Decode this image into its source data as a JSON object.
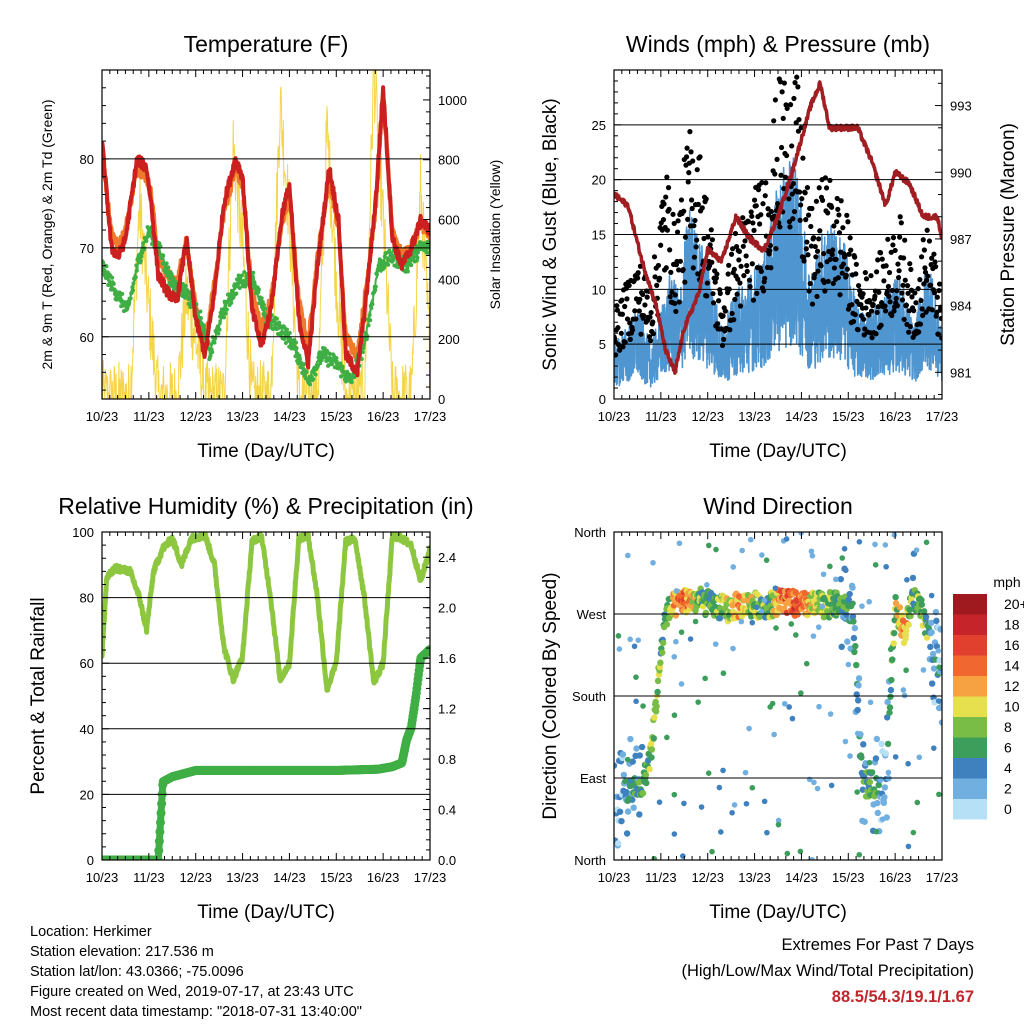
{
  "colors": {
    "red": "#cc1f1f",
    "orange": "#f07a2c",
    "green_td": "#3fae44",
    "yellow": "#f5d548",
    "gust": "#000000",
    "wind": "#4f95d0",
    "pressure": "#a01e22",
    "rh": "#8dc63f",
    "precip": "#3fae44",
    "accent_text": "#c0272d"
  },
  "x_ticks": [
    "10/23",
    "11/23",
    "12/23",
    "13/23",
    "14/23",
    "15/23",
    "16/23",
    "17/23"
  ],
  "xlabel": "Time (Day/UTC)",
  "temperature": {
    "title": "Temperature (F)",
    "ylabel_left": "2m & 9m T (Red, Orange) & 2m Td (Green)",
    "ylabel_right": "Solar Insolation (Yellow)",
    "y_ticks_left": [
      "60",
      "70",
      "80"
    ],
    "y_ticks_right": [
      "0",
      "200",
      "400",
      "600",
      "800",
      "1000"
    ]
  },
  "winds": {
    "title": "Winds (mph) & Pressure (mb)",
    "ylabel_left": "Sonic Wind & Gust (Blue, Black)",
    "ylabel_right": "Station Pressure (Maroon)",
    "y_ticks_left": [
      "0",
      "5",
      "10",
      "15",
      "20",
      "25"
    ],
    "y_ticks_right": [
      "981",
      "984",
      "987",
      "990",
      "993"
    ]
  },
  "humidity": {
    "title": "Relative Humidity (%) & Precipitation (in)",
    "ylabel_left": "Percent & Total Rainfall",
    "y_ticks_left": [
      "0",
      "20",
      "40",
      "60",
      "80",
      "100"
    ],
    "y_ticks_right": [
      "0.0",
      "0.4",
      "0.8",
      "1.2",
      "1.6",
      "2.0",
      "2.4"
    ]
  },
  "direction": {
    "title": "Wind Direction",
    "ylabel_left": "Direction (Colored By Speed)",
    "y_ticks_left": [
      "North",
      "East",
      "South",
      "West",
      "North"
    ],
    "legend_title": "mph",
    "legend_labels": [
      "20+",
      "18",
      "16",
      "14",
      "12",
      "10",
      "8",
      "6",
      "4",
      "2",
      "0"
    ],
    "legend_colors": [
      "#9e1a1e",
      "#c4242a",
      "#e0402d",
      "#f0672f",
      "#f6a142",
      "#e6e04e",
      "#79bd47",
      "#3d9e5c",
      "#3f80bf",
      "#71afe0",
      "#b6e0f5"
    ]
  },
  "info": {
    "location": "Location: Herkimer",
    "elevation": "Station elevation: 217.536 m",
    "latlon": "Station lat/lon: 43.0366; -75.0096",
    "created": "Figure created on Wed, 2019-07-17, at 23:43 UTC",
    "recent": "Most recent data timestamp: \"2018-07-31 13:40:00\""
  },
  "extremes": {
    "title": "Extremes For Past 7 Days",
    "subtitle": "(High/Low/Max Wind/Total Precipitation)",
    "values": "88.5/54.3/19.1/1.67"
  },
  "chart_data": [
    {
      "type": "line",
      "title": "Temperature (F)",
      "xlabel": "Time (Day/UTC)",
      "ylabel": "2m & 9m T (Red, Orange) & 2m Td (Green)",
      "ylabel_right": "Solar Insolation (Yellow)",
      "xlim": [
        0,
        7
      ],
      "ylim": [
        53,
        90
      ],
      "ylim_right": [
        0,
        1100
      ],
      "x_tick_labels": [
        "10/23",
        "11/23",
        "12/23",
        "13/23",
        "14/23",
        "15/23",
        "16/23",
        "17/23"
      ],
      "series": [
        {
          "name": "2m T",
          "axis": "left",
          "x": [
            0,
            0.2,
            0.35,
            0.5,
            0.75,
            0.95,
            1.05,
            1.2,
            1.4,
            1.6,
            1.8,
            2.0,
            2.2,
            2.4,
            2.6,
            2.85,
            3.0,
            3.2,
            3.4,
            3.6,
            3.85,
            4.0,
            4.2,
            4.4,
            4.6,
            4.85,
            5.05,
            5.2,
            5.45,
            5.65,
            5.85,
            6.0,
            6.2,
            6.4,
            6.6,
            6.8,
            7.0
          ],
          "y": [
            82,
            70,
            69,
            71,
            80,
            79,
            75,
            67,
            65,
            64,
            71,
            62,
            58,
            65,
            75,
            80,
            78,
            63,
            59,
            63,
            74,
            77,
            62,
            57,
            68,
            79,
            73,
            58,
            56,
            65,
            76,
            88,
            71,
            68,
            70,
            73,
            72
          ]
        },
        {
          "name": "9m T",
          "axis": "left",
          "x": [
            0,
            0.2,
            0.35,
            0.5,
            0.75,
            0.95,
            1.05,
            1.2,
            1.4,
            1.6,
            1.8,
            2.0,
            2.2,
            2.4,
            2.6,
            2.85,
            3.0,
            3.2,
            3.4,
            3.6,
            3.85,
            4.0,
            4.2,
            4.4,
            4.6,
            4.85,
            5.05,
            5.2,
            5.45,
            5.65,
            5.85,
            6.0,
            6.2,
            6.4,
            6.6,
            6.8,
            7.0
          ],
          "y": [
            81,
            72,
            70,
            72,
            79,
            78,
            76,
            69,
            67,
            66,
            71,
            63,
            59,
            66,
            74,
            79,
            77,
            65,
            61,
            64,
            73,
            76,
            64,
            59,
            69,
            78,
            72,
            60,
            58,
            66,
            75,
            87,
            72,
            69,
            70,
            73,
            71
          ]
        },
        {
          "name": "2m Td",
          "axis": "left",
          "x": [
            0,
            0.3,
            0.55,
            0.8,
            1.0,
            1.2,
            1.5,
            1.8,
            2.1,
            2.3,
            2.6,
            2.9,
            3.2,
            3.5,
            3.8,
            4.1,
            4.4,
            4.7,
            5.0,
            5.3,
            5.6,
            5.9,
            6.2,
            6.5,
            6.8,
            7.0
          ],
          "y": [
            68,
            65,
            63,
            69,
            72,
            70,
            66,
            65,
            62,
            58,
            63,
            66,
            67,
            62,
            61,
            59,
            55,
            58,
            57,
            55,
            59,
            68,
            69,
            68,
            70,
            70
          ]
        },
        {
          "name": "Solar Insolation",
          "axis": "right",
          "x": [
            0,
            0.6,
            0.8,
            1.0,
            1.2,
            1.6,
            1.8,
            2.0,
            2.2,
            2.6,
            2.8,
            3.0,
            3.2,
            3.6,
            3.8,
            4.0,
            4.2,
            4.6,
            4.8,
            5.0,
            5.2,
            5.6,
            5.8,
            6.0,
            6.2,
            6.6,
            6.8,
            7.0
          ],
          "y": [
            0,
            0,
            650,
            300,
            0,
            0,
            350,
            200,
            0,
            0,
            850,
            500,
            0,
            0,
            1000,
            600,
            0,
            0,
            900,
            400,
            0,
            0,
            1100,
            600,
            0,
            0,
            700,
            150
          ]
        }
      ]
    },
    {
      "type": "scatter",
      "title": "Winds (mph) & Pressure (mb)",
      "xlabel": "Time (Day/UTC)",
      "ylabel": "Sonic Wind & Gust (Blue, Black)",
      "ylabel_right": "Station Pressure (Maroon)",
      "xlim": [
        0,
        7
      ],
      "ylim": [
        0,
        30
      ],
      "ylim_right": [
        979.8,
        994.6
      ],
      "x_tick_labels": [
        "10/23",
        "11/23",
        "12/23",
        "13/23",
        "14/23",
        "15/23",
        "16/23",
        "17/23"
      ],
      "series": [
        {
          "name": "Wind",
          "axis": "left",
          "x": [
            0,
            0.5,
            0.8,
            1.2,
            1.4,
            1.6,
            1.8,
            2.0,
            2.3,
            2.6,
            2.9,
            3.2,
            3.5,
            3.8,
            4.0,
            4.2,
            4.5,
            4.9,
            5.2,
            5.5,
            5.8,
            6.1,
            6.4,
            6.7,
            7.0
          ],
          "y": [
            3,
            5,
            3,
            7,
            6,
            11,
            9,
            8,
            4,
            6,
            7,
            8,
            12,
            14,
            11,
            7,
            10,
            9,
            5,
            5,
            6,
            7,
            4,
            8,
            4
          ]
        },
        {
          "name": "Gust",
          "axis": "left",
          "x": [
            0,
            0.5,
            0.8,
            1.1,
            1.3,
            1.6,
            1.8,
            2.0,
            2.3,
            2.6,
            2.9,
            3.2,
            3.5,
            3.8,
            4.0,
            4.2,
            4.5,
            4.9,
            5.2,
            5.5,
            5.8,
            6.1,
            6.4,
            6.7,
            7.0
          ],
          "y": [
            6,
            10,
            8,
            17,
            12,
            19,
            18,
            14,
            7,
            12,
            14,
            16,
            22,
            26,
            19,
            13,
            16,
            14,
            9,
            9,
            11,
            13,
            8,
            13,
            7
          ]
        },
        {
          "name": "Pressure",
          "axis": "right",
          "x": [
            0,
            0.3,
            0.6,
            0.9,
            1.1,
            1.3,
            1.5,
            1.8,
            2.0,
            2.3,
            2.6,
            2.9,
            3.2,
            3.5,
            3.8,
            4.0,
            4.2,
            4.4,
            4.6,
            4.9,
            5.2,
            5.5,
            5.8,
            6.0,
            6.3,
            6.6,
            6.9,
            7.0
          ],
          "y": [
            989,
            988.5,
            986,
            984,
            982,
            981,
            983,
            984.5,
            986.5,
            986,
            988,
            987,
            986.5,
            988,
            990,
            991.5,
            993,
            994,
            992,
            992,
            992,
            990.5,
            988.5,
            990,
            989.5,
            988,
            988,
            987
          ]
        }
      ]
    },
    {
      "type": "line",
      "title": "Relative Humidity (%) & Precipitation (in)",
      "xlabel": "Time (Day/UTC)",
      "ylabel": "Percent & Total Rainfall",
      "xlim": [
        0,
        7
      ],
      "ylim": [
        0,
        100
      ],
      "ylim_right": [
        0,
        2.6
      ],
      "x_tick_labels": [
        "10/23",
        "11/23",
        "12/23",
        "13/23",
        "14/23",
        "15/23",
        "16/23",
        "17/23"
      ],
      "series": [
        {
          "name": "Relative Humidity",
          "axis": "left",
          "x": [
            0,
            0.1,
            0.3,
            0.6,
            0.8,
            0.95,
            1.1,
            1.3,
            1.5,
            1.7,
            1.9,
            2.2,
            2.4,
            2.6,
            2.8,
            3.0,
            3.2,
            3.4,
            3.6,
            3.8,
            4.0,
            4.2,
            4.4,
            4.6,
            4.8,
            5.0,
            5.2,
            5.4,
            5.6,
            5.8,
            6.0,
            6.2,
            6.4,
            6.6,
            6.8,
            7.0
          ],
          "y": [
            62,
            86,
            89,
            88,
            80,
            70,
            88,
            95,
            98,
            90,
            98,
            99,
            90,
            65,
            55,
            62,
            97,
            99,
            80,
            55,
            60,
            98,
            99,
            80,
            52,
            60,
            97,
            98,
            80,
            54,
            60,
            99,
            98,
            96,
            85,
            95
          ]
        },
        {
          "name": "Total Rainfall",
          "axis": "right",
          "x": [
            0,
            1.0,
            1.2,
            1.3,
            1.5,
            1.8,
            2.0,
            3.0,
            4.0,
            5.0,
            5.9,
            6.2,
            6.4,
            6.5,
            6.6,
            6.7,
            6.8,
            7.0
          ],
          "y": [
            0,
            0,
            0,
            0.62,
            0.66,
            0.69,
            0.71,
            0.71,
            0.71,
            0.71,
            0.72,
            0.74,
            0.77,
            0.95,
            1.05,
            1.3,
            1.6,
            1.67
          ]
        }
      ]
    },
    {
      "type": "scatter",
      "title": "Wind Direction",
      "xlabel": "Time (Day/UTC)",
      "ylabel": "Direction (Colored By Speed)",
      "xlim": [
        0,
        7
      ],
      "ylim": [
        0,
        360
      ],
      "y_tick_labels": [
        "North",
        "East",
        "South",
        "West",
        "North"
      ],
      "x_tick_labels": [
        "10/23",
        "11/23",
        "12/23",
        "13/23",
        "14/23",
        "15/23",
        "16/23",
        "17/23"
      ],
      "series": [
        {
          "name": "Direction",
          "x": [
            0,
            0.2,
            0.4,
            0.6,
            0.8,
            0.95,
            1.1,
            1.3,
            1.5,
            1.8,
            2.1,
            2.4,
            2.7,
            3.0,
            3.3,
            3.6,
            3.9,
            4.2,
            4.5,
            4.8,
            5.1,
            5.3,
            5.5,
            5.8,
            6.0,
            6.2,
            6.4,
            6.6,
            6.8,
            7.0
          ],
          "y": [
            55,
            75,
            80,
            80,
            120,
            200,
            270,
            280,
            285,
            285,
            280,
            275,
            280,
            280,
            280,
            285,
            280,
            280,
            280,
            280,
            270,
            80,
            85,
            80,
            280,
            250,
            290,
            270,
            230,
            200
          ],
          "speed": [
            2,
            3,
            4,
            5,
            8,
            8,
            6,
            12,
            14,
            8,
            6,
            9,
            11,
            8,
            7,
            14,
            16,
            10,
            8,
            6,
            4,
            4,
            6,
            2,
            8,
            12,
            6,
            9,
            3,
            2
          ]
        }
      ]
    }
  ]
}
